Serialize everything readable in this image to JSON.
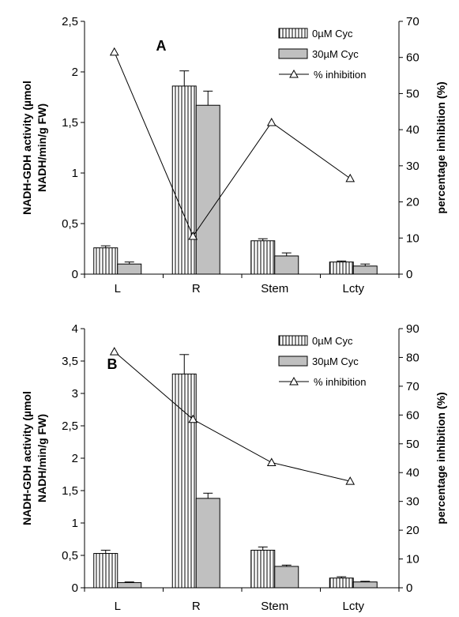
{
  "chart_data": [
    {
      "type": "bar",
      "panel_label": "A",
      "categories": [
        "L",
        "R",
        "Stem",
        "Lcty"
      ],
      "series": [
        {
          "name": "0µM Cyc",
          "values": [
            0.26,
            1.86,
            0.33,
            0.12
          ],
          "errors": [
            0.02,
            0.15,
            0.02,
            0.01
          ],
          "pattern": "vertical-hatch"
        },
        {
          "name": "30µM Cyc",
          "values": [
            0.1,
            1.67,
            0.18,
            0.08
          ],
          "errors": [
            0.02,
            0.14,
            0.03,
            0.02
          ],
          "color": "#c0c0c0"
        }
      ],
      "line_series": {
        "name": "% inhibition",
        "values": [
          61.5,
          10.5,
          42.0,
          26.5
        ],
        "axis": "right",
        "marker": "open-triangle"
      },
      "ylabel_lines": [
        "NADH-GDH activity (µmol",
        "NADH/min/g FW)"
      ],
      "y2label": "percentage inhibition (%)",
      "ylim": [
        0,
        2.5
      ],
      "y_ticks": [
        "0",
        "0,5",
        "1",
        "1,5",
        "2",
        "2,5"
      ],
      "y2lim": [
        0,
        70
      ],
      "y2_ticks": [
        "0",
        "10",
        "20",
        "30",
        "40",
        "50",
        "60",
        "70"
      ],
      "legend_position": "top-right",
      "grid": false
    },
    {
      "type": "bar",
      "panel_label": "B",
      "categories": [
        "L",
        "R",
        "Stem",
        "Lcty"
      ],
      "series": [
        {
          "name": "0µM Cyc",
          "values": [
            0.53,
            3.3,
            0.58,
            0.15
          ],
          "errors": [
            0.05,
            0.3,
            0.05,
            0.02
          ],
          "pattern": "vertical-hatch"
        },
        {
          "name": "30µM Cyc",
          "values": [
            0.08,
            1.38,
            0.33,
            0.09
          ],
          "errors": [
            0.01,
            0.08,
            0.02,
            0.01
          ],
          "color": "#c0c0c0"
        }
      ],
      "line_series": {
        "name": "% inhibition",
        "values": [
          82.0,
          58.5,
          43.5,
          37.0
        ],
        "axis": "right",
        "marker": "open-triangle"
      },
      "ylabel_lines": [
        "NADH-GDH activity (µmol",
        "NADH/min/g FW)"
      ],
      "y2label": "percentage inhibition (%)",
      "ylim": [
        0,
        4
      ],
      "y_ticks": [
        "0",
        "0,5",
        "1",
        "1,5",
        "2",
        "2,5",
        "3",
        "3,5",
        "4"
      ],
      "y2lim": [
        0,
        90
      ],
      "y2_ticks": [
        "0",
        "10",
        "20",
        "30",
        "40",
        "50",
        "60",
        "70",
        "80",
        "90"
      ],
      "legend_position": "top-right",
      "grid": false
    }
  ]
}
